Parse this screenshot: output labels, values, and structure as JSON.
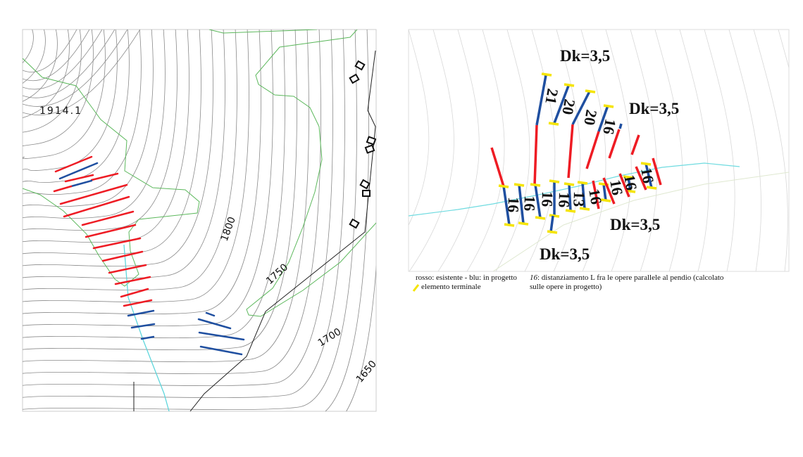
{
  "left_map": {
    "spot_height": "1914.1",
    "contour_labels": [
      "1800",
      "1750",
      "1700",
      "1650"
    ],
    "colors": {
      "existing": "#ee1c24",
      "planned": "#1f4fa0",
      "stream": "#5fd6dc",
      "boundary": "#5cb85c",
      "road": "#222222",
      "contour": "#8a8a8a"
    }
  },
  "right_map": {
    "dk_labels": [
      "Dk=3,5",
      "Dk=3,5",
      "Dk=3,5",
      "Dk=3,5"
    ],
    "upper_spacings": [
      "21",
      "20",
      "20",
      "16"
    ],
    "lower_spacings": [
      "16",
      "16",
      "16",
      "16",
      "13",
      "16",
      "16",
      "16",
      "16"
    ],
    "colors": {
      "existing": "#ee1c24",
      "planned": "#1f4fa0",
      "terminal": "#f5e400",
      "stream": "#6fdbe0"
    }
  },
  "legend": {
    "colors_line": "rosso: esistente - blu: in progetto",
    "terminal_label": "elemento terminale",
    "spacing_example": "16",
    "spacing_text": ": distanziamento L fra le opere parallele al pendio (calcolato",
    "spacing_text_2": "sulle opere in progetto)"
  }
}
